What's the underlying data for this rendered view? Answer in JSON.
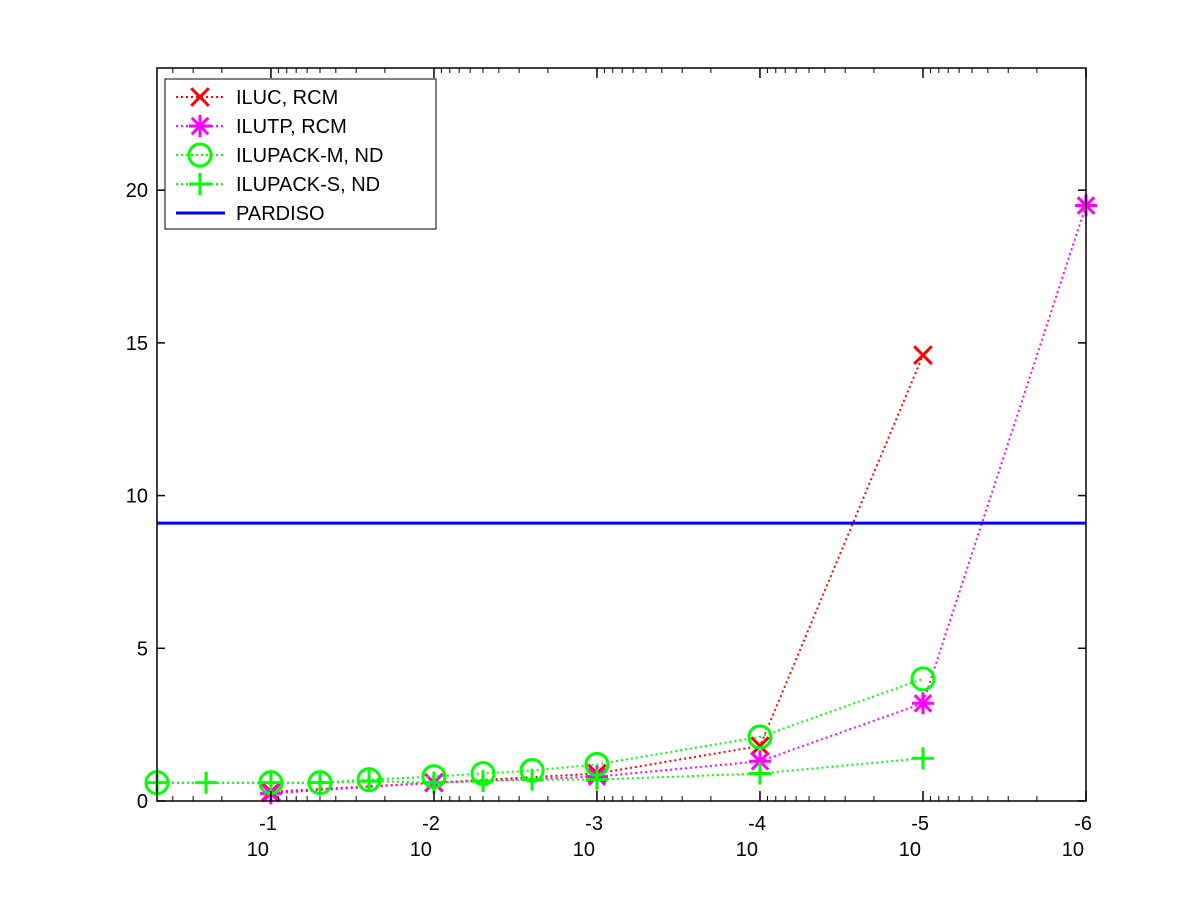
{
  "chart_data": {
    "type": "line",
    "title": "",
    "xlabel": "",
    "ylabel": "",
    "xscale": "log",
    "xaxis_reversed": true,
    "xlim": [
      0.5,
      1e-06
    ],
    "ylim": [
      0,
      24
    ],
    "grid": false,
    "legend_position": "top-left",
    "x_ticks": [
      {
        "value": 0.1,
        "base": "10",
        "exp": "-1"
      },
      {
        "value": 0.01,
        "base": "10",
        "exp": "-2"
      },
      {
        "value": 0.001,
        "base": "10",
        "exp": "-3"
      },
      {
        "value": 0.0001,
        "base": "10",
        "exp": "-4"
      },
      {
        "value": 1e-05,
        "base": "10",
        "exp": "-5"
      },
      {
        "value": 1e-06,
        "base": "10",
        "exp": "-6"
      }
    ],
    "y_ticks": [
      "0",
      "5",
      "10",
      "15",
      "20"
    ],
    "series": [
      {
        "name": "ILUC, RCM",
        "color": "#ff0000",
        "marker": "x",
        "linestyle": "dotted",
        "points": [
          [
            0.1,
            0.3
          ],
          [
            0.01,
            0.6
          ],
          [
            0.001,
            0.9
          ],
          [
            0.0001,
            1.8
          ],
          [
            1e-05,
            14.6
          ]
        ]
      },
      {
        "name": "ILUTP, RCM",
        "color": "#ff00ff",
        "marker": "asterisk",
        "linestyle": "dotted",
        "points": [
          [
            0.1,
            0.25
          ],
          [
            0.01,
            0.6
          ],
          [
            0.001,
            0.8
          ],
          [
            0.0001,
            1.3
          ],
          [
            1e-05,
            3.2
          ],
          [
            1e-06,
            19.5
          ]
        ]
      },
      {
        "name": "ILUPACK-M, ND",
        "color": "#00ff00",
        "marker": "circle",
        "linestyle": "dotted",
        "points": [
          [
            0.5,
            0.6
          ],
          [
            0.1,
            0.6
          ],
          [
            0.05,
            0.6
          ],
          [
            0.025,
            0.7
          ],
          [
            0.01,
            0.8
          ],
          [
            0.005,
            0.9
          ],
          [
            0.0025,
            1.0
          ],
          [
            0.001,
            1.2
          ],
          [
            0.0001,
            2.1
          ],
          [
            1e-05,
            4.0
          ]
        ]
      },
      {
        "name": "ILUPACK-S, ND",
        "color": "#00ff00",
        "marker": "plus",
        "linestyle": "dotted",
        "points": [
          [
            0.5,
            0.6
          ],
          [
            0.25,
            0.6
          ],
          [
            0.1,
            0.6
          ],
          [
            0.05,
            0.6
          ],
          [
            0.025,
            0.65
          ],
          [
            0.01,
            0.6
          ],
          [
            0.005,
            0.65
          ],
          [
            0.0025,
            0.7
          ],
          [
            0.001,
            0.7
          ],
          [
            0.0001,
            0.9
          ],
          [
            1e-05,
            1.4
          ]
        ]
      },
      {
        "name": "PARDISO",
        "color": "#0000ff",
        "marker": "none",
        "linestyle": "solid",
        "points": [
          [
            0.5,
            9.1
          ],
          [
            1e-06,
            9.1
          ]
        ]
      }
    ]
  }
}
